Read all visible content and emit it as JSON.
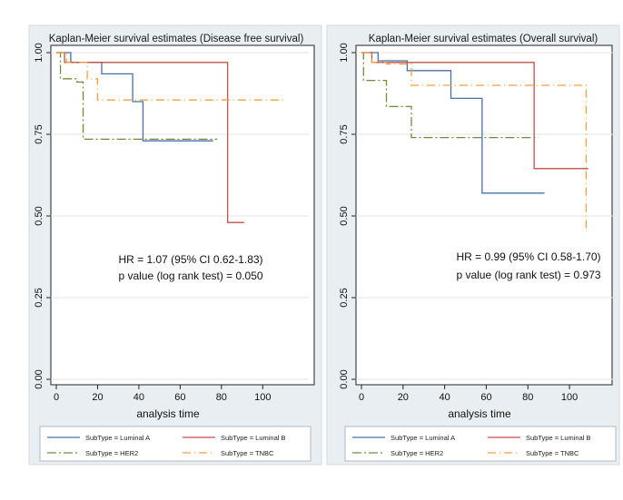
{
  "chart_data": [
    {
      "type": "line",
      "title": "Kaplan-Meier survival estimates (Disease free survival)",
      "xlabel": "analysis time",
      "ylabel": "",
      "xlim": [
        0,
        110
      ],
      "ylim": [
        0,
        1
      ],
      "xticks": [
        "0",
        "20",
        "40",
        "60",
        "80",
        "100"
      ],
      "yticks": [
        "0.00",
        "0.25",
        "0.50",
        "0.75",
        "1.00"
      ],
      "annotation": [
        "HR = 1.07 (95% CI 0.62-1.83)",
        "p value (log rank test) = 0.050"
      ],
      "series": [
        {
          "name": "SubType = Luminal A",
          "color": "#4a6fa5",
          "dash": "solid",
          "x": [
            0,
            7,
            22,
            37,
            42,
            76
          ],
          "y": [
            1.0,
            0.97,
            0.935,
            0.85,
            0.73,
            0.73
          ]
        },
        {
          "name": "SubType = Luminal B",
          "color": "#c0504d",
          "dash": "solid",
          "x": [
            0,
            4,
            83,
            91
          ],
          "y": [
            1.0,
            0.97,
            0.48,
            0.48
          ]
        },
        {
          "name": "SubType = HER2",
          "color": "#6b8e3e",
          "dash": "dashdot",
          "x": [
            0,
            2,
            10,
            13,
            78
          ],
          "y": [
            1.0,
            0.92,
            0.91,
            0.735,
            0.735
          ]
        },
        {
          "name": "SubType = TNBC",
          "color": "#f2a03c",
          "dash": "longdash",
          "x": [
            0,
            5,
            15,
            20,
            110
          ],
          "y": [
            1.0,
            0.97,
            0.92,
            0.855,
            0.855
          ]
        }
      ]
    },
    {
      "type": "line",
      "title": "Kaplan-Meier survival estimates (Overall survival)",
      "xlabel": "analysis time",
      "ylabel": "",
      "xlim": [
        0,
        110
      ],
      "ylim": [
        0,
        1
      ],
      "xticks": [
        "0",
        "20",
        "40",
        "60",
        "80",
        "100"
      ],
      "yticks": [
        "0.00",
        "0.25",
        "0.50",
        "0.75",
        "1.00"
      ],
      "annotation": [
        "HR = 0.99 (95% CI 0.58-1.70)",
        "p value (log rank test) = 0.973"
      ],
      "series": [
        {
          "name": "SubType = Luminal A",
          "color": "#4a6fa5",
          "dash": "solid",
          "x": [
            0,
            8,
            22,
            43,
            58,
            88
          ],
          "y": [
            1.0,
            0.975,
            0.945,
            0.86,
            0.57,
            0.57
          ]
        },
        {
          "name": "SubType = Luminal B",
          "color": "#c0504d",
          "dash": "solid",
          "x": [
            0,
            5,
            83,
            109
          ],
          "y": [
            1.0,
            0.97,
            0.645,
            0.645
          ]
        },
        {
          "name": "SubType = HER2",
          "color": "#6b8e3e",
          "dash": "dashdot",
          "x": [
            0,
            1,
            12,
            22,
            24,
            85
          ],
          "y": [
            1.0,
            0.915,
            0.835,
            0.835,
            0.74,
            0.74
          ]
        },
        {
          "name": "SubType = TNBC",
          "color": "#f2a03c",
          "dash": "longdash",
          "x": [
            0,
            5,
            12,
            24,
            105,
            108
          ],
          "y": [
            1.0,
            0.97,
            0.965,
            0.9,
            0.9,
            0.45
          ]
        }
      ]
    }
  ]
}
